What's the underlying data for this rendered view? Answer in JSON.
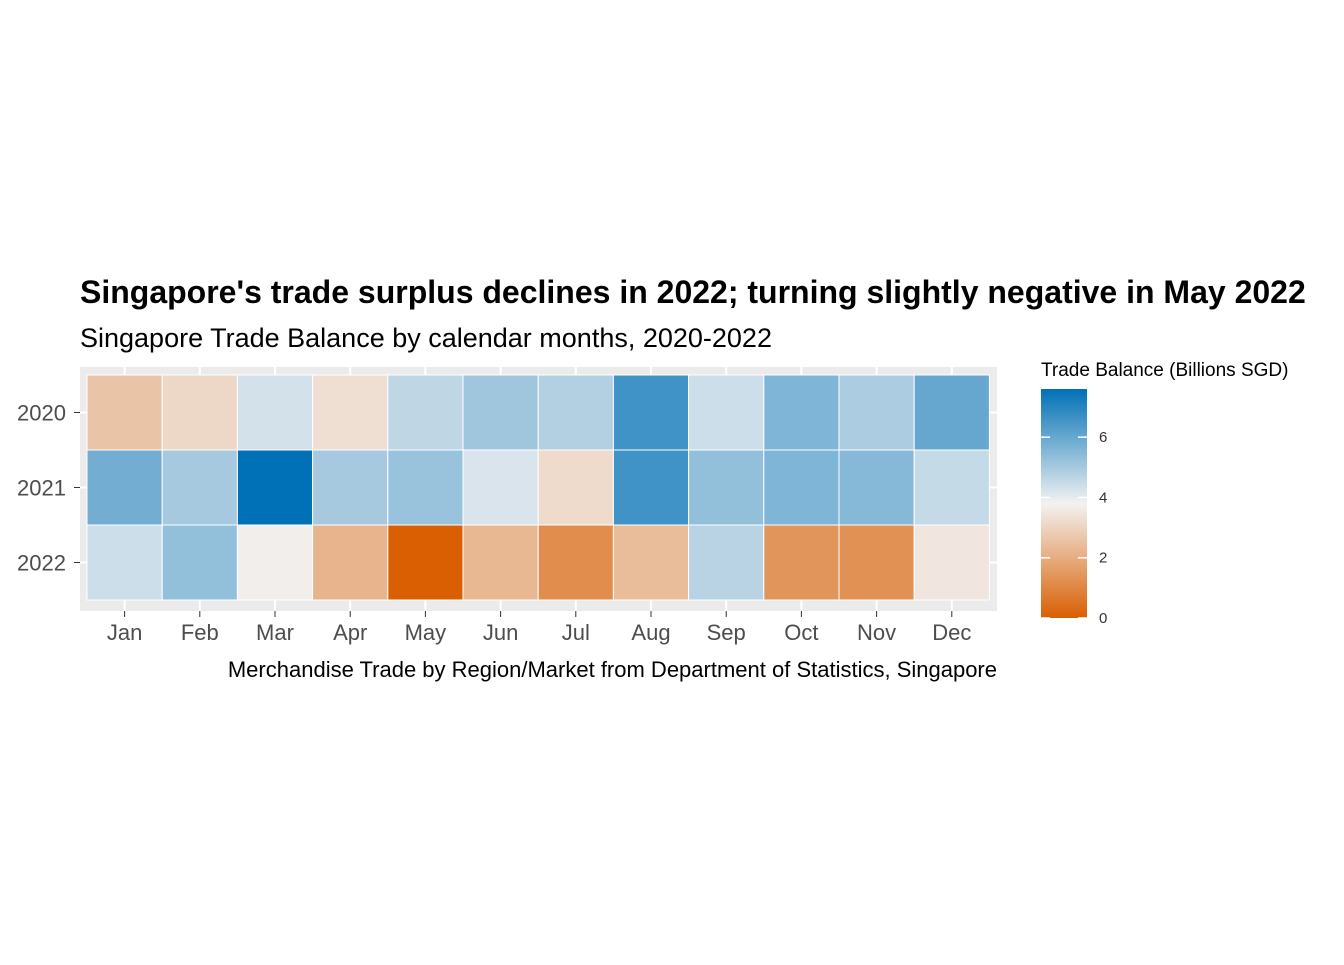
{
  "chart_data": {
    "type": "heatmap",
    "title": "Singapore's trade surplus declines in 2022; turning slightly negative in May 2022",
    "subtitle": "Singapore Trade Balance by calendar months, 2020-2022",
    "caption": "Merchandise Trade by Region/Market from Department of Statistics, Singapore",
    "xlabel": "",
    "ylabel": "",
    "x_categories": [
      "Jan",
      "Feb",
      "Mar",
      "Apr",
      "May",
      "Jun",
      "Jul",
      "Aug",
      "Sep",
      "Oct",
      "Nov",
      "Dec"
    ],
    "y_categories": [
      "2020",
      "2021",
      "2022"
    ],
    "values": [
      [
        2.6,
        3.1,
        4.3,
        3.3,
        4.6,
        5.1,
        4.8,
        6.6,
        4.4,
        5.6,
        4.9,
        6.0
      ],
      [
        5.8,
        5.0,
        7.6,
        5.0,
        5.2,
        4.2,
        3.2,
        6.6,
        5.3,
        5.6,
        5.5,
        4.5
      ],
      [
        4.4,
        5.3,
        3.7,
        2.2,
        0.0,
        2.3,
        1.2,
        2.4,
        4.7,
        1.4,
        1.3,
        3.5
      ]
    ],
    "legend": {
      "title": "Trade Balance (Billions SGD)",
      "position": "right",
      "ticks": [
        0,
        2,
        4,
        6
      ],
      "range": [
        0,
        7.6
      ],
      "colors": {
        "low": "#d95f02",
        "mid": "#f2f2f2",
        "high": "#0071b6",
        "midpoint": 3.8
      }
    },
    "panel_background": "#ebebeb",
    "grid": true
  }
}
